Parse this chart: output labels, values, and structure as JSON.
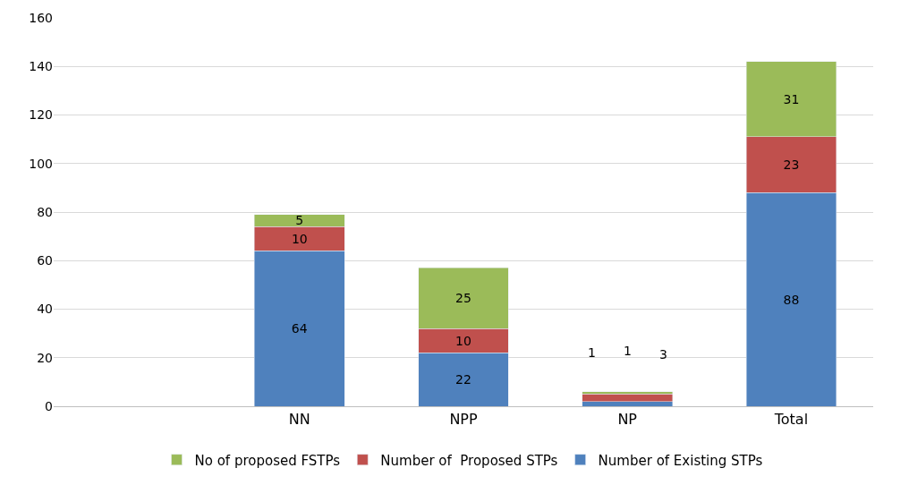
{
  "chart_data": {
    "type": "bar",
    "stacked": true,
    "categories": [
      null,
      "NN",
      "NPP",
      "NP",
      "Total"
    ],
    "series": [
      {
        "name": "Number of Existing STPs",
        "color": "#4f81bd",
        "values": [
          null,
          64,
          22,
          2,
          88
        ],
        "value_labels": [
          null,
          "64",
          "22",
          null,
          "88"
        ]
      },
      {
        "name": "Number of  Proposed STPs",
        "color": "#c0504d",
        "values": [
          null,
          10,
          10,
          3,
          23
        ],
        "value_labels": [
          null,
          "10",
          "10",
          null,
          "23"
        ]
      },
      {
        "name": "No of proposed FSTPs",
        "color": "#9bbb59",
        "values": [
          null,
          5,
          25,
          1,
          31
        ],
        "value_labels": [
          null,
          "5",
          "25",
          null,
          "31"
        ]
      }
    ],
    "annotations": [
      "1",
      "1",
      "3"
    ],
    "ylim": [
      0,
      160
    ],
    "yticks": [
      0,
      20,
      40,
      60,
      80,
      100,
      120,
      140,
      160
    ],
    "grid": "y",
    "legend": "bottom"
  }
}
